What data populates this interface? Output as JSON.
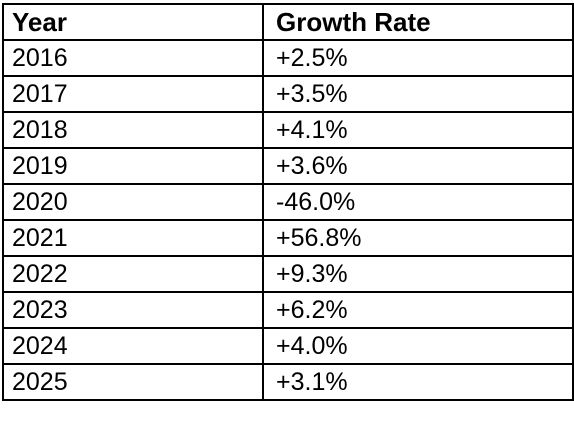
{
  "table": {
    "headers": {
      "year": "Year",
      "rate": "Growth Rate"
    },
    "rows": [
      {
        "year": "2016",
        "rate": "+2.5%"
      },
      {
        "year": "2017",
        "rate": "+3.5%"
      },
      {
        "year": "2018",
        "rate": "+4.1%"
      },
      {
        "year": "2019",
        "rate": "+3.6%"
      },
      {
        "year": "2020",
        "rate": "-46.0%"
      },
      {
        "year": "2021",
        "rate": "+56.8%"
      },
      {
        "year": "2022",
        "rate": "+9.3%"
      },
      {
        "year": "2023",
        "rate": "+6.2%"
      },
      {
        "year": "2024",
        "rate": "+4.0%"
      },
      {
        "year": "2025",
        "rate": "+3.1%"
      }
    ]
  }
}
